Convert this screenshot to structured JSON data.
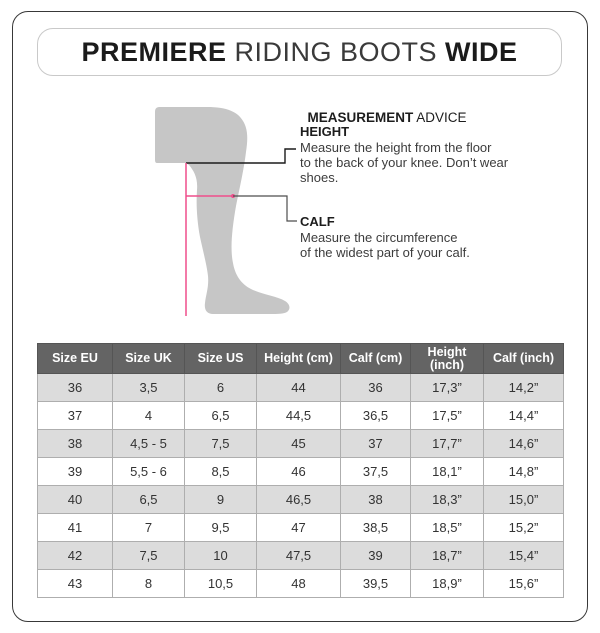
{
  "title": {
    "bold_left": "PREMIERE",
    "regular": " RIDING BOOTS ",
    "bold_right": "WIDE"
  },
  "advice": {
    "heading_bold": "MEASUREMENT",
    "heading_regular": " ADVICE",
    "height": {
      "label": "HEIGHT",
      "lines": [
        "Measure the height from the floor",
        "to the back of your knee. Don’t wear",
        "shoes."
      ]
    },
    "calf": {
      "label": "CALF",
      "lines": [
        "Measure the circumference",
        "of the widest part of your calf."
      ]
    }
  },
  "colors": {
    "accent_pink": "#ef4e8c",
    "header_bg": "#646464",
    "row_alt_bg": "#dcdcdc",
    "leg_fill": "#c6c6c6"
  },
  "table": {
    "headers": [
      "Size EU",
      "Size UK",
      "Size US",
      "Height (cm)",
      "Calf (cm)",
      "Height (inch)",
      "Calf (inch)"
    ],
    "rows": [
      [
        "36",
        "3,5",
        "6",
        "44",
        "36",
        "17,3”",
        "14,2”"
      ],
      [
        "37",
        "4",
        "6,5",
        "44,5",
        "36,5",
        "17,5”",
        "14,4”"
      ],
      [
        "38",
        "4,5 - 5",
        "7,5",
        "45",
        "37",
        "17,7”",
        "14,6”"
      ],
      [
        "39",
        "5,5 - 6",
        "8,5",
        "46",
        "37,5",
        "18,1”",
        "14,8”"
      ],
      [
        "40",
        "6,5",
        "9",
        "46,5",
        "38",
        "18,3”",
        "15,0”"
      ],
      [
        "41",
        "7",
        "9,5",
        "47",
        "38,5",
        "18,5”",
        "15,2”"
      ],
      [
        "42",
        "7,5",
        "10",
        "47,5",
        "39",
        "18,7”",
        "15,4”"
      ],
      [
        "43",
        "8",
        "10,5",
        "48",
        "39,5",
        "18,9”",
        "15,6”"
      ]
    ]
  }
}
